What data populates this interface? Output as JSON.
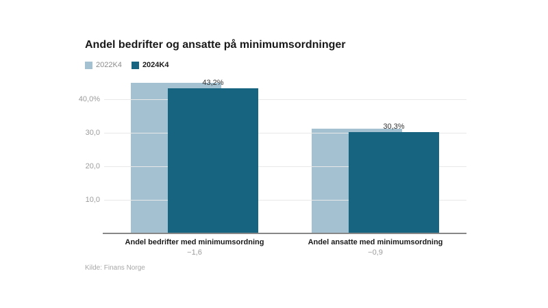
{
  "title": "Andel bedrifter og ansatte på minimumsordninger",
  "source": "Kilde: Finans Norge",
  "colors": {
    "series_2022": "#a3c1d0",
    "series_2024": "#176480",
    "gridline": "#e8e8e8",
    "axis_line": "#878787",
    "tick_text": "#9b9b9b",
    "title_text": "#191919"
  },
  "chart_data": {
    "type": "bar",
    "title": "Andel bedrifter og ansatte på minimumsordninger",
    "categories": [
      "Andel bedrifter med minimumsordning",
      "Andel ansatte med minimumsordning"
    ],
    "category_changes": [
      "−1,6",
      "−0,9"
    ],
    "series": [
      {
        "name": "2022K4",
        "color": "#a3c1d0",
        "emphasis": false,
        "values": [
          44.8,
          31.2
        ],
        "labels": [
          "",
          ""
        ]
      },
      {
        "name": "2024K4",
        "color": "#176480",
        "emphasis": true,
        "values": [
          43.2,
          30.3
        ],
        "labels": [
          "43,2%",
          "30,3%"
        ]
      }
    ],
    "y_ticks": [
      {
        "value": 10,
        "label": "10,0"
      },
      {
        "value": 20,
        "label": "20,0"
      },
      {
        "value": 30,
        "label": "30,0"
      },
      {
        "value": 40,
        "label": "40,0%"
      }
    ],
    "ylim": [
      0,
      46
    ],
    "grid": true,
    "legend_position": "top-left",
    "xlabel": "",
    "ylabel": "",
    "source": "Kilde: Finans Norge"
  }
}
